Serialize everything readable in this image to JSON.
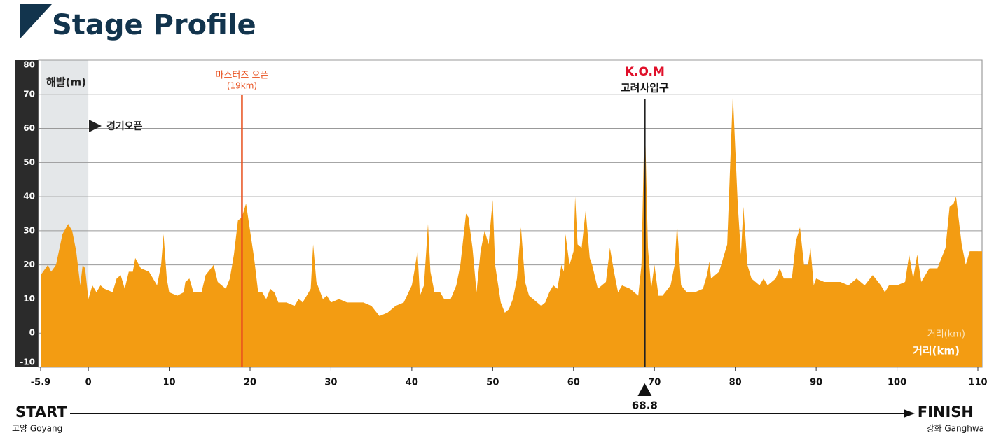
{
  "chart_data": {
    "type": "area",
    "title": "Stage Profile",
    "y_label": "해발(m)",
    "x_label": "거리(km)",
    "x_label_faint": "거리(km)",
    "race_open": "경기오픈",
    "color": "#f39c12",
    "grid": true,
    "xlim": [
      -5.9,
      110
    ],
    "ylim": [
      -10,
      80
    ],
    "xticks": [
      -5.9,
      0,
      10,
      20,
      30,
      40,
      50,
      60,
      70,
      80,
      90,
      100,
      110
    ],
    "yticks": [
      80,
      70,
      60,
      50,
      40,
      30,
      20,
      10,
      0,
      -10
    ],
    "markers": [
      {
        "label": "마스터즈 오픈",
        "sublabel": "(19km)",
        "x": 19,
        "color": "#e8501e"
      }
    ],
    "kom": {
      "title": "K.O.M",
      "label": "고려사입구",
      "x": 68.8
    },
    "start": {
      "label": "START",
      "sublabel": "고양 Goyang"
    },
    "finish": {
      "label": "FINISH",
      "sublabel": "강화 Ganghwa"
    },
    "x": [
      -5.9,
      -5,
      -4.6,
      -4,
      -3.2,
      -2.5,
      -2,
      -1.5,
      -1,
      -0.7,
      -0.4,
      0,
      0.5,
      1,
      1.5,
      2,
      3,
      3.5,
      4,
      4.5,
      5,
      5.5,
      5.8,
      6.5,
      7.5,
      8.5,
      9,
      9.3,
      9.7,
      10,
      11,
      11.8,
      12,
      12.5,
      13,
      14,
      14.5,
      15.5,
      16,
      17,
      17.5,
      18,
      18.5,
      19,
      19.5,
      20,
      20.5,
      21,
      21.5,
      22,
      22.5,
      23,
      23.5,
      24.5,
      25.5,
      26,
      26.5,
      27,
      27.5,
      27.8,
      28.2,
      29,
      29.5,
      30,
      31,
      32,
      33,
      34,
      35,
      36,
      37,
      38,
      39,
      40,
      40.3,
      40.7,
      41,
      41.5,
      42,
      42.3,
      42.8,
      43.5,
      44,
      44.8,
      45.5,
      46,
      46.7,
      47,
      47.5,
      48,
      48.5,
      49,
      49.5,
      50,
      50.3,
      51,
      51.5,
      52,
      52.5,
      53,
      53.5,
      54,
      54.5,
      55,
      56,
      56.5,
      57,
      57.5,
      58,
      58.5,
      58.8,
      59,
      59.5,
      60,
      60.2,
      60.5,
      61,
      61.5,
      62,
      62.3,
      63,
      64,
      64.5,
      65,
      65.5,
      66,
      67,
      67.5,
      68,
      68.4,
      68.8,
      69.2,
      69.6,
      70,
      70.5,
      71,
      72,
      72.5,
      72.8,
      73.3,
      74,
      75,
      76,
      76.5,
      76.8,
      77,
      78,
      79,
      79.3,
      79.7,
      80.3,
      80.7,
      81,
      81.5,
      82,
      83,
      83.5,
      84,
      85,
      85.5,
      86,
      87,
      87.5,
      88,
      88.5,
      89,
      89.3,
      89.7,
      90,
      91,
      92,
      93,
      94,
      95,
      96,
      97,
      98,
      98.5,
      99,
      100,
      101,
      101.5,
      102,
      102.5,
      103,
      104,
      105,
      106,
      106.5,
      107,
      107.3,
      107.8,
      108,
      108.5,
      109,
      110
    ],
    "values": [
      17,
      20,
      18,
      20,
      29,
      32,
      30,
      24,
      14,
      20,
      19,
      10,
      14,
      12,
      14,
      13,
      12,
      16,
      17,
      13,
      18,
      18,
      22,
      19,
      18,
      14,
      20,
      29,
      16,
      12,
      11,
      12,
      15,
      16,
      12,
      12,
      17,
      20,
      15,
      13,
      16,
      23,
      33,
      34,
      38,
      30,
      22,
      12,
      12,
      10,
      13,
      12,
      9,
      9,
      8,
      10,
      9,
      11,
      13,
      26,
      15,
      10,
      11,
      9,
      10,
      9,
      9,
      9,
      8,
      5,
      6,
      8,
      9,
      14,
      18,
      24,
      11,
      14,
      32,
      18,
      12,
      12,
      10,
      10,
      14,
      20,
      35,
      34,
      25,
      12,
      24,
      30,
      26,
      39,
      20,
      9,
      6,
      7,
      10,
      16,
      31,
      15,
      11,
      10,
      8,
      9,
      12,
      14,
      13,
      20,
      18,
      29,
      20,
      24,
      40,
      26,
      25,
      36,
      22,
      20,
      13,
      15,
      25,
      18,
      12,
      14,
      13,
      12,
      11,
      20,
      65,
      25,
      13,
      20,
      11,
      11,
      14,
      20,
      32,
      14,
      12,
      12,
      13,
      17,
      21,
      16,
      18,
      26,
      45,
      70,
      38,
      23,
      37,
      20,
      16,
      14,
      16,
      14,
      16,
      19,
      16,
      16,
      27,
      31,
      20,
      20,
      25,
      14,
      16,
      15,
      15,
      15,
      14,
      16,
      14,
      17,
      14,
      12,
      14,
      14,
      15,
      23,
      16,
      23,
      15,
      19,
      19,
      25,
      37,
      38,
      40,
      30,
      26,
      20,
      24,
      24
    ]
  }
}
